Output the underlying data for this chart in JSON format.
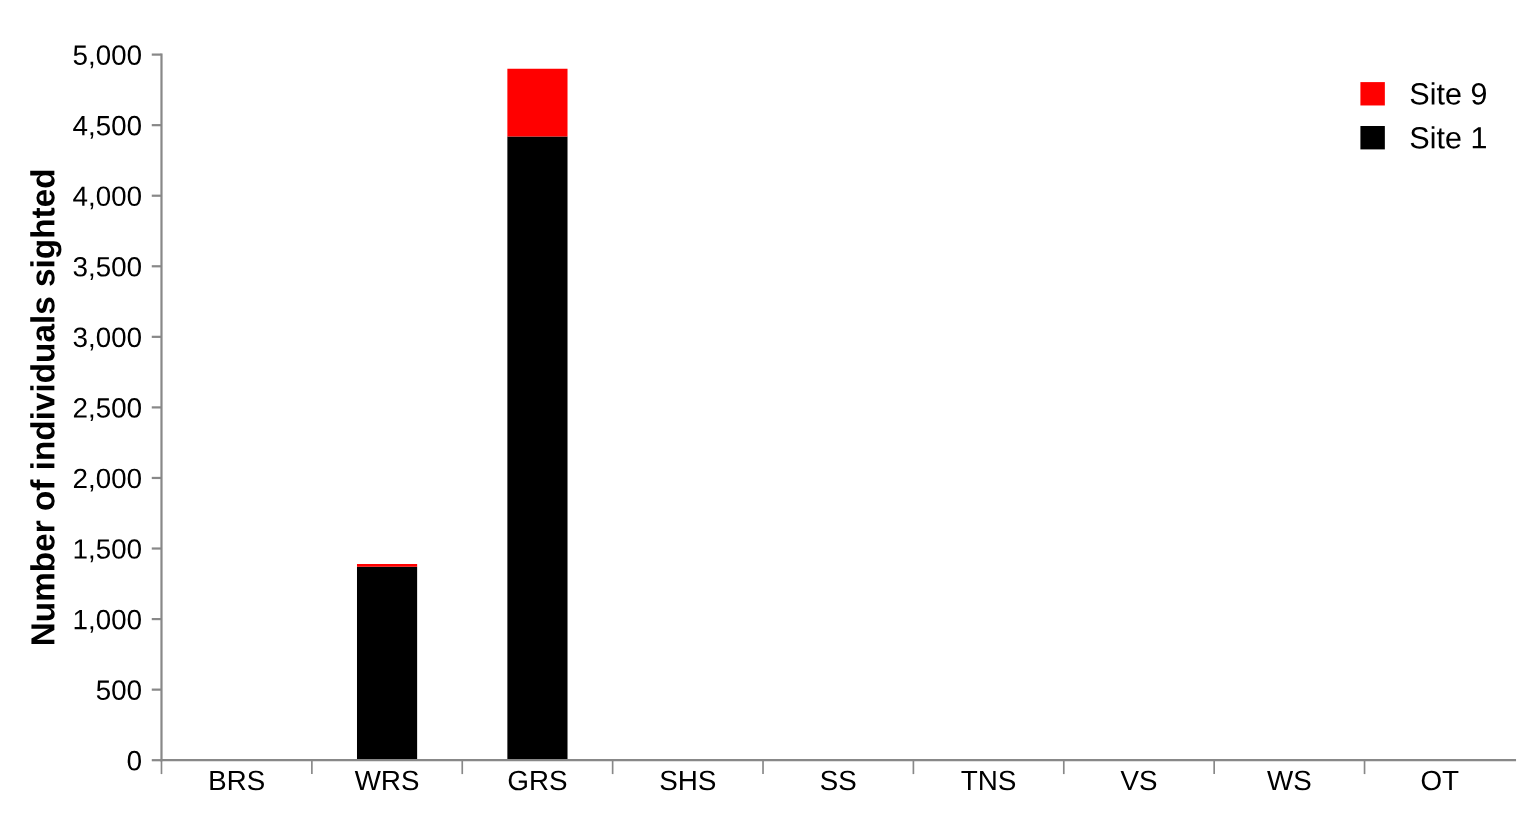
{
  "chart_data": {
    "type": "bar",
    "stacked": true,
    "ylabel": "Number of individuals sighted",
    "categories": [
      "BRS",
      "WRS",
      "GRS",
      "SHS",
      "SS",
      "TNS",
      "VS",
      "WS",
      "OT"
    ],
    "series": [
      {
        "name": "Site 1",
        "color": "#000000",
        "values": [
          0,
          1370,
          4420,
          0,
          0,
          0,
          0,
          0,
          0
        ]
      },
      {
        "name": "Site 9",
        "color": "#ff0000",
        "values": [
          0,
          20,
          480,
          0,
          0,
          0,
          0,
          0,
          0
        ]
      }
    ],
    "ylim": [
      0,
      5000
    ],
    "yticks": [
      {
        "value": 0,
        "label": "0"
      },
      {
        "value": 500,
        "label": "500"
      },
      {
        "value": 1000,
        "label": "1,000"
      },
      {
        "value": 1500,
        "label": "1,500"
      },
      {
        "value": 2000,
        "label": "2,000"
      },
      {
        "value": 2500,
        "label": "2,500"
      },
      {
        "value": 3000,
        "label": "3,000"
      },
      {
        "value": 3500,
        "label": "3,500"
      },
      {
        "value": 4000,
        "label": "4,000"
      },
      {
        "value": 4500,
        "label": "4,500"
      },
      {
        "value": 5000,
        "label": "5,000"
      }
    ],
    "grid": false,
    "legend": "top right"
  }
}
